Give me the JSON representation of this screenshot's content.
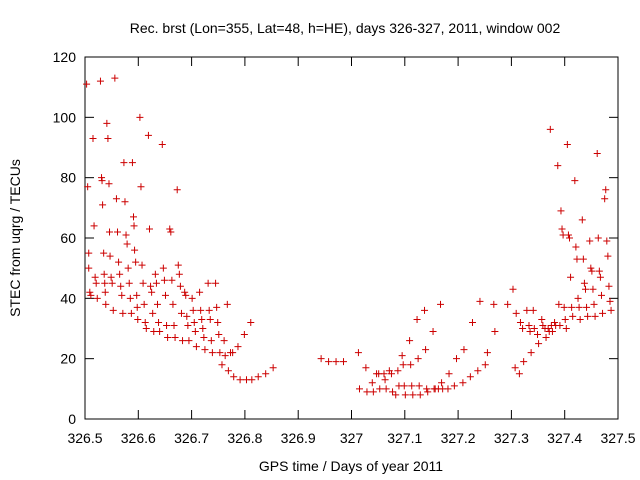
{
  "chart_data": {
    "type": "scatter",
    "title": "Rec. brst (Lon=355, Lat=48, h=HE), days 326-327, 2011, window 002",
    "xlabel": "GPS time / Days of year 2011",
    "ylabel": "STEC from uqrg / TECUs",
    "xlim": [
      326.5,
      327.5
    ],
    "ylim": [
      0,
      120
    ],
    "x_ticks": [
      326.5,
      326.6,
      326.7,
      326.8,
      326.9,
      327,
      327.1,
      327.2,
      327.3,
      327.4,
      327.5
    ],
    "x_tick_labels": [
      "326.5",
      "326.6",
      "326.7",
      "326.8",
      "326.9",
      "327",
      "327.1",
      "327.2",
      "327.3",
      "327.4",
      "327.5"
    ],
    "y_ticks": [
      0,
      20,
      40,
      60,
      80,
      100,
      120
    ],
    "y_tick_labels": [
      "0",
      "20",
      "40",
      "60",
      "80",
      "100",
      "120"
    ],
    "grid": false,
    "marker": "+",
    "marker_color": "#cc0000",
    "series": [
      {
        "points": [
          [
            326.503,
            111
          ],
          [
            326.505,
            77
          ],
          [
            326.507,
            55
          ],
          [
            326.507,
            50
          ],
          [
            326.509,
            42
          ],
          [
            326.511,
            41
          ],
          [
            326.515,
            93
          ],
          [
            326.517,
            64
          ],
          [
            326.519,
            47
          ],
          [
            326.521,
            45
          ],
          [
            326.523,
            40
          ],
          [
            326.529,
            112
          ],
          [
            326.531,
            80
          ],
          [
            326.532,
            79
          ],
          [
            326.533,
            71
          ],
          [
            326.535,
            55
          ],
          [
            326.536,
            48
          ],
          [
            326.537,
            45
          ],
          [
            326.538,
            42
          ],
          [
            326.539,
            38
          ],
          [
            326.541,
            98
          ],
          [
            326.543,
            93
          ],
          [
            326.545,
            78
          ],
          [
            326.546,
            62
          ],
          [
            326.547,
            54
          ],
          [
            326.549,
            47
          ],
          [
            326.551,
            45
          ],
          [
            326.553,
            36
          ],
          [
            326.556,
            113
          ],
          [
            326.559,
            73
          ],
          [
            326.561,
            62
          ],
          [
            326.563,
            52
          ],
          [
            326.565,
            48
          ],
          [
            326.567,
            44
          ],
          [
            326.569,
            41
          ],
          [
            326.571,
            35
          ],
          [
            326.573,
            85
          ],
          [
            326.575,
            72
          ],
          [
            326.577,
            61
          ],
          [
            326.579,
            58
          ],
          [
            326.581,
            50
          ],
          [
            326.583,
            45
          ],
          [
            326.585,
            40
          ],
          [
            326.587,
            35
          ],
          [
            326.589,
            85
          ],
          [
            326.591,
            67
          ],
          [
            326.592,
            64
          ],
          [
            326.593,
            56
          ],
          [
            326.595,
            52
          ],
          [
            326.597,
            41
          ],
          [
            326.598,
            37
          ],
          [
            326.599,
            33
          ],
          [
            326.603,
            100
          ],
          [
            326.605,
            77
          ],
          [
            326.607,
            51
          ],
          [
            326.609,
            45
          ],
          [
            326.611,
            38
          ],
          [
            326.613,
            32
          ],
          [
            326.615,
            30
          ],
          [
            326.619,
            94
          ],
          [
            326.621,
            63
          ],
          [
            326.623,
            44
          ],
          [
            326.625,
            42
          ],
          [
            326.627,
            35
          ],
          [
            326.629,
            29
          ],
          [
            326.632,
            48
          ],
          [
            326.634,
            45
          ],
          [
            326.636,
            38
          ],
          [
            326.638,
            32
          ],
          [
            326.64,
            29
          ],
          [
            326.645,
            91
          ],
          [
            326.647,
            50
          ],
          [
            326.649,
            46
          ],
          [
            326.651,
            41
          ],
          [
            326.653,
            31
          ],
          [
            326.655,
            27
          ],
          [
            326.659,
            63
          ],
          [
            326.661,
            62
          ],
          [
            326.663,
            46
          ],
          [
            326.665,
            38
          ],
          [
            326.667,
            31
          ],
          [
            326.669,
            27
          ],
          [
            326.673,
            76
          ],
          [
            326.675,
            51
          ],
          [
            326.677,
            48
          ],
          [
            326.679,
            44
          ],
          [
            326.681,
            35
          ],
          [
            326.683,
            26
          ],
          [
            326.687,
            42
          ],
          [
            326.689,
            41
          ],
          [
            326.691,
            34
          ],
          [
            326.693,
            31
          ],
          [
            326.695,
            26
          ],
          [
            326.701,
            40
          ],
          [
            326.703,
            36
          ],
          [
            326.705,
            32
          ],
          [
            326.707,
            29
          ],
          [
            326.709,
            24
          ],
          [
            326.715,
            42
          ],
          [
            326.717,
            36
          ],
          [
            326.719,
            33
          ],
          [
            326.721,
            30
          ],
          [
            326.723,
            27
          ],
          [
            326.725,
            23
          ],
          [
            326.731,
            45
          ],
          [
            326.733,
            36
          ],
          [
            326.735,
            33
          ],
          [
            326.737,
            26
          ],
          [
            326.739,
            22
          ],
          [
            326.745,
            45
          ],
          [
            326.747,
            37
          ],
          [
            326.749,
            32
          ],
          [
            326.751,
            28
          ],
          [
            326.753,
            22
          ],
          [
            326.757,
            18
          ],
          [
            326.761,
            26
          ],
          [
            326.763,
            21
          ],
          [
            326.767,
            38
          ],
          [
            326.769,
            16
          ],
          [
            326.773,
            22
          ],
          [
            326.777,
            22
          ],
          [
            326.779,
            14
          ],
          [
            326.787,
            24
          ],
          [
            326.791,
            13
          ],
          [
            326.799,
            28
          ],
          [
            326.803,
            13
          ],
          [
            326.811,
            32
          ],
          [
            326.813,
            13
          ],
          [
            326.825,
            14
          ],
          [
            326.839,
            15
          ],
          [
            326.853,
            17
          ]
        ]
      },
      {
        "points": [
          [
            326.943,
            20
          ],
          [
            326.957,
            19
          ],
          [
            326.971,
            19
          ],
          [
            326.985,
            19
          ],
          [
            327.013,
            22
          ],
          [
            327.015,
            10
          ],
          [
            327.027,
            17
          ],
          [
            327.029,
            9
          ],
          [
            327.039,
            12
          ],
          [
            327.041,
            9
          ],
          [
            327.047,
            15
          ],
          [
            327.051,
            15
          ],
          [
            327.053,
            10
          ],
          [
            327.061,
            15
          ],
          [
            327.063,
            13
          ],
          [
            327.065,
            10
          ],
          [
            327.071,
            16
          ],
          [
            327.075,
            15
          ],
          [
            327.077,
            9
          ],
          [
            327.083,
            8
          ],
          [
            327.087,
            16
          ],
          [
            327.089,
            11
          ],
          [
            327.095,
            21
          ],
          [
            327.097,
            18
          ],
          [
            327.099,
            11
          ],
          [
            327.101,
            8
          ],
          [
            327.109,
            26
          ],
          [
            327.111,
            18
          ],
          [
            327.113,
            11
          ],
          [
            327.115,
            8
          ],
          [
            327.123,
            33
          ],
          [
            327.125,
            20
          ],
          [
            327.127,
            11
          ],
          [
            327.129,
            8
          ],
          [
            327.137,
            36
          ],
          [
            327.139,
            23
          ],
          [
            327.141,
            10
          ],
          [
            327.143,
            9
          ],
          [
            327.153,
            29
          ],
          [
            327.155,
            10
          ],
          [
            327.157,
            10
          ],
          [
            327.163,
            10
          ],
          [
            327.167,
            38
          ],
          [
            327.169,
            12
          ],
          [
            327.171,
            10
          ],
          [
            327.181,
            10
          ],
          [
            327.183,
            15
          ],
          [
            327.193,
            11
          ],
          [
            327.197,
            20
          ],
          [
            327.209,
            12
          ],
          [
            327.211,
            23
          ],
          [
            327.223,
            14
          ],
          [
            327.227,
            32
          ],
          [
            327.237,
            16
          ],
          [
            327.241,
            39
          ],
          [
            327.251,
            18
          ],
          [
            327.255,
            22
          ],
          [
            327.267,
            38
          ],
          [
            327.269,
            29
          ]
        ]
      },
      {
        "points": [
          [
            327.293,
            38
          ],
          [
            327.303,
            43
          ],
          [
            327.307,
            17
          ],
          [
            327.309,
            35
          ],
          [
            327.315,
            15
          ],
          [
            327.317,
            32
          ],
          [
            327.321,
            30
          ],
          [
            327.323,
            19
          ],
          [
            327.329,
            36
          ],
          [
            327.333,
            31
          ],
          [
            327.335,
            29
          ],
          [
            327.337,
            22
          ],
          [
            327.341,
            36
          ],
          [
            327.343,
            30
          ],
          [
            327.349,
            28
          ],
          [
            327.351,
            25
          ],
          [
            327.357,
            33
          ],
          [
            327.359,
            31
          ],
          [
            327.363,
            30
          ],
          [
            327.365,
            27
          ],
          [
            327.369,
            30
          ],
          [
            327.371,
            29
          ],
          [
            327.373,
            96
          ],
          [
            327.375,
            31
          ],
          [
            327.377,
            29
          ],
          [
            327.381,
            32
          ],
          [
            327.383,
            31
          ],
          [
            327.387,
            84
          ],
          [
            327.389,
            38
          ],
          [
            327.391,
            31
          ],
          [
            327.393,
            69
          ],
          [
            327.395,
            63
          ],
          [
            327.397,
            61
          ],
          [
            327.399,
            37
          ],
          [
            327.401,
            33
          ],
          [
            327.403,
            30
          ],
          [
            327.405,
            91
          ],
          [
            327.407,
            61
          ],
          [
            327.409,
            60
          ],
          [
            327.411,
            47
          ],
          [
            327.413,
            37
          ],
          [
            327.415,
            34
          ],
          [
            327.419,
            79
          ],
          [
            327.421,
            57
          ],
          [
            327.423,
            53
          ],
          [
            327.425,
            40
          ],
          [
            327.427,
            37
          ],
          [
            327.429,
            33
          ],
          [
            327.433,
            66
          ],
          [
            327.435,
            53
          ],
          [
            327.437,
            45
          ],
          [
            327.439,
            43
          ],
          [
            327.441,
            37
          ],
          [
            327.443,
            34
          ],
          [
            327.447,
            59
          ],
          [
            327.449,
            50
          ],
          [
            327.451,
            49
          ],
          [
            327.453,
            43
          ],
          [
            327.455,
            38
          ],
          [
            327.457,
            34
          ],
          [
            327.461,
            88
          ],
          [
            327.463,
            60
          ],
          [
            327.465,
            49
          ],
          [
            327.467,
            47
          ],
          [
            327.469,
            41
          ],
          [
            327.471,
            35
          ],
          [
            327.475,
            73
          ],
          [
            327.477,
            76
          ],
          [
            327.479,
            59
          ],
          [
            327.481,
            54
          ],
          [
            327.483,
            44
          ],
          [
            327.485,
            39
          ],
          [
            327.487,
            36
          ]
        ]
      }
    ]
  }
}
